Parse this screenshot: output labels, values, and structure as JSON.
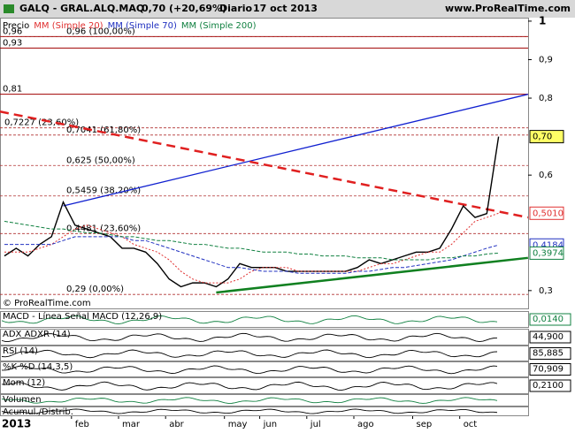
{
  "header": {
    "symbol": "GALQ - GRAL.ALQ.MAQ",
    "quote": "0,70 (+20,69%)",
    "period": "Diario",
    "date": "17 oct 2013",
    "site": "www.ProRealTime.com"
  },
  "chart_data": {
    "type": "line",
    "categories": [
      "2013",
      null,
      null,
      null,
      null,
      null,
      "feb",
      null,
      null,
      null,
      "mar",
      null,
      null,
      null,
      "abr",
      null,
      null,
      null,
      null,
      "may",
      null,
      null,
      "jun",
      null,
      null,
      null,
      "jul",
      null,
      null,
      null,
      "ago",
      null,
      null,
      null,
      null,
      "sep",
      null,
      null,
      null,
      "oct",
      null,
      null,
      null
    ],
    "series": [
      {
        "name": "Precio",
        "color": "#000000",
        "values": [
          0.39,
          0.41,
          0.39,
          0.42,
          0.44,
          0.53,
          0.47,
          0.46,
          0.45,
          0.44,
          0.41,
          0.41,
          0.4,
          0.37,
          0.33,
          0.31,
          0.32,
          0.32,
          0.31,
          0.33,
          0.37,
          0.36,
          0.36,
          0.36,
          0.35,
          0.35,
          0.35,
          0.35,
          0.35,
          0.35,
          0.36,
          0.38,
          0.37,
          0.38,
          0.39,
          0.4,
          0.4,
          0.41,
          0.46,
          0.52,
          0.49,
          0.5,
          0.7
        ]
      },
      {
        "name": "MM (Simple 20)",
        "color": "#e03030",
        "values": [
          0.4,
          0.4,
          0.4,
          0.41,
          0.42,
          0.44,
          0.46,
          0.47,
          0.46,
          0.45,
          0.44,
          0.42,
          0.41,
          0.4,
          0.38,
          0.35,
          0.33,
          0.32,
          0.32,
          0.32,
          0.33,
          0.35,
          0.36,
          0.36,
          0.36,
          0.35,
          0.35,
          0.35,
          0.35,
          0.35,
          0.35,
          0.36,
          0.37,
          0.37,
          0.38,
          0.39,
          0.4,
          0.4,
          0.42,
          0.45,
          0.48,
          0.49,
          0.501
        ]
      },
      {
        "name": "MM (Simple 70)",
        "color": "#2030c0",
        "values": [
          0.42,
          0.42,
          0.42,
          0.42,
          0.42,
          0.43,
          0.44,
          0.44,
          0.44,
          0.44,
          0.44,
          0.43,
          0.43,
          0.42,
          0.41,
          0.4,
          0.39,
          0.38,
          0.37,
          0.36,
          0.36,
          0.355,
          0.35,
          0.35,
          0.35,
          0.345,
          0.345,
          0.345,
          0.345,
          0.345,
          0.35,
          0.35,
          0.355,
          0.36,
          0.36,
          0.365,
          0.37,
          0.375,
          0.38,
          0.39,
          0.4,
          0.41,
          0.4184
        ]
      },
      {
        "name": "MM (Simple 200)",
        "color": "#108040",
        "values": [
          0.48,
          0.475,
          0.47,
          0.465,
          0.46,
          0.46,
          0.455,
          0.45,
          0.45,
          0.445,
          0.44,
          0.44,
          0.435,
          0.43,
          0.43,
          0.425,
          0.42,
          0.42,
          0.415,
          0.41,
          0.41,
          0.405,
          0.4,
          0.4,
          0.4,
          0.395,
          0.395,
          0.39,
          0.39,
          0.39,
          0.385,
          0.385,
          0.385,
          0.38,
          0.38,
          0.38,
          0.38,
          0.385,
          0.385,
          0.39,
          0.39,
          0.395,
          0.3974
        ]
      }
    ],
    "ylim": [
      0.256,
      1.009
    ],
    "yticks": [
      1,
      {
        "value": 0.9,
        "label": "0,9"
      },
      {
        "value": 0.8,
        "label": "0,8"
      },
      {
        "value": 0.6,
        "label": "0,6"
      },
      {
        "value": 0.3,
        "label": "0,3"
      }
    ],
    "hlines": [
      {
        "value": 0.96,
        "label": "0,96"
      },
      {
        "value": 0.93,
        "label": "0,93"
      },
      {
        "value": 0.81,
        "label": "0,81"
      }
    ],
    "fib_levels": [
      {
        "value": 0.96,
        "label": "0,96 (100,00%)"
      },
      {
        "value": 0.7227,
        "label": "0,7227 (23,60%)"
      },
      {
        "value": 0.7041,
        "label": "0,7041 (61,80%)"
      },
      {
        "value": 0.625,
        "label": "0,625 (50,00%)"
      },
      {
        "value": 0.5459,
        "label": "0,5459 (38,20%)"
      },
      {
        "value": 0.4481,
        "label": "0,4481 (23,60%)"
      },
      {
        "value": 0.29,
        "label": "0,29 (0,00%)"
      }
    ],
    "price_labels": [
      {
        "value": 0.7,
        "label": "0,70",
        "color": "#000000",
        "background": "#ffff66"
      },
      {
        "value": 0.501,
        "label": "0,5010",
        "color": "#e03030",
        "background": "#ffffff"
      },
      {
        "value": 0.4184,
        "label": "0,4184",
        "color": "#2030c0",
        "background": "#ffffff"
      },
      {
        "value": 0.3974,
        "label": "0,3974",
        "color": "#108040",
        "background": "#ffffff"
      }
    ],
    "trendlines": [
      {
        "color": "#1020d0",
        "dashed": false,
        "x": [
          5,
          44.5
        ],
        "y": [
          0.52,
          0.81
        ]
      },
      {
        "color": "#e02020",
        "dashed": true,
        "x": [
          -0.4,
          44.5
        ],
        "y": [
          0.765,
          0.49
        ]
      },
      {
        "color": "#108020",
        "dashed": false,
        "x": [
          18,
          44.5
        ],
        "y": [
          0.295,
          0.385
        ]
      }
    ],
    "legend_label": "Precio",
    "copyright": "© ProRealTime.com"
  },
  "indicators": [
    {
      "label": "MACD - Línea Señal MACD (12,26,9)",
      "value_label": "0,0140",
      "color": "#108040"
    },
    {
      "label": "ADX ADXR (14)",
      "value_label": "44,900",
      "color": "#000000"
    },
    {
      "label": "RSI (14)",
      "value_label": "85,885",
      "color": "#000000"
    },
    {
      "label": "%K %D (14,3,5)",
      "value_label": "70,909",
      "color": "#000000"
    },
    {
      "label": "Mom (12)",
      "value_label": "0,2100",
      "color": "#000000"
    },
    {
      "label": "Volumen",
      "value_label": null,
      "color": "#108040"
    },
    {
      "label": "Acumul./Distrib.",
      "value_label": null,
      "color": "#000000"
    }
  ]
}
